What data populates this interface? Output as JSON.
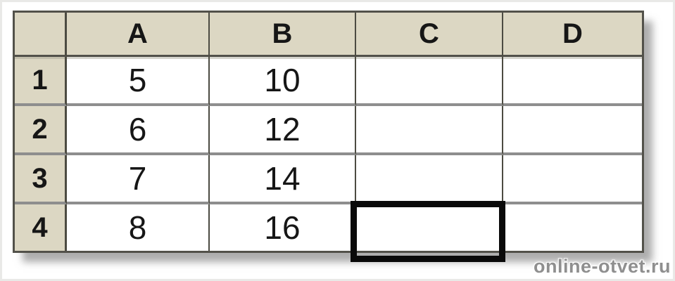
{
  "sheet": {
    "columns": [
      "A",
      "B",
      "C",
      "D"
    ],
    "rows": [
      {
        "header": "1",
        "cells": [
          "5",
          "10",
          "",
          ""
        ]
      },
      {
        "header": "2",
        "cells": [
          "6",
          "12",
          "",
          ""
        ]
      },
      {
        "header": "3",
        "cells": [
          "7",
          "14",
          "",
          ""
        ]
      },
      {
        "header": "4",
        "cells": [
          "8",
          "16",
          "",
          ""
        ]
      }
    ],
    "selected_cell_ref": "C4"
  },
  "watermark": "online-otvet.ru",
  "colors": {
    "header_bg": "#dcd7c3",
    "grid_dark": "#52514a",
    "grid_gray": "#8e8e8e",
    "selection_border": "#0a0a0a",
    "watermark_text": "#8f8f8f"
  }
}
